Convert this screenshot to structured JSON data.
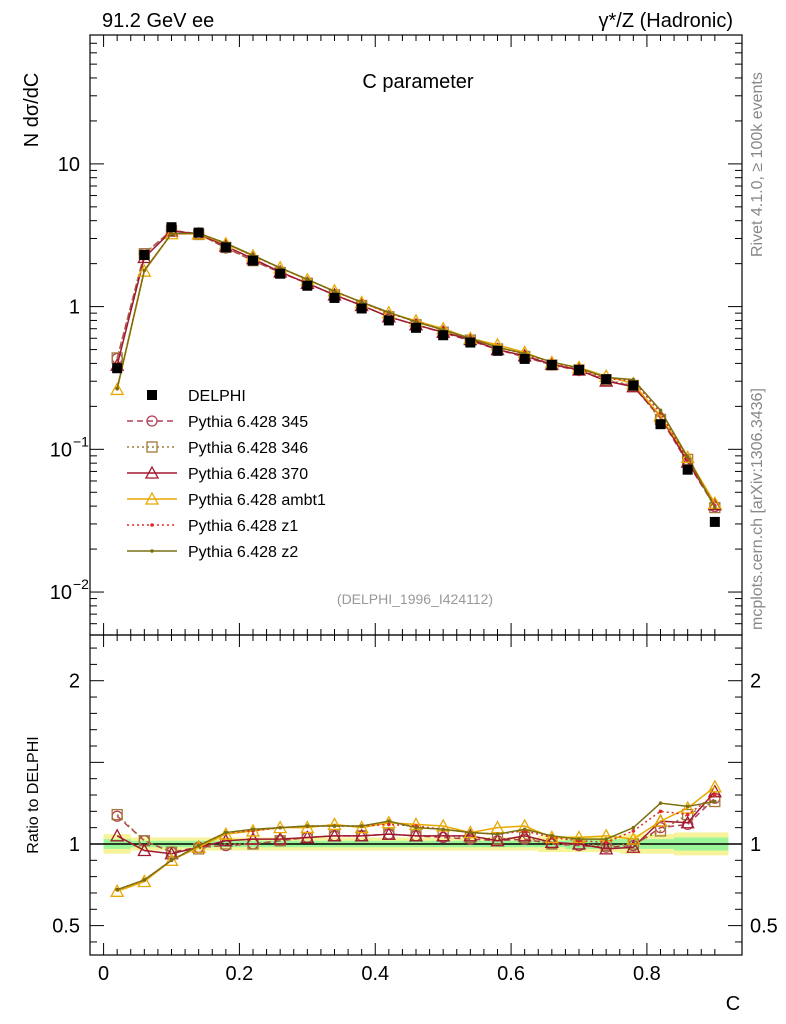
{
  "header": {
    "left": "91.2 GeV ee",
    "right_prefix": "γ*/Z (Hadronic)",
    "side_rivet": "Rivet 4.1.0, ≥ 100k events",
    "side_site": "mcplots.cern.ch [arXiv:1306.3436]"
  },
  "chart_data": {
    "type": "line",
    "title": "C parameter",
    "analysis_tag": "(DELPHI_1996_I424112)",
    "xlabel": "C",
    "ylabel_main": "N  dσ/dC",
    "ylabel_ratio": "Ratio to DELPHI",
    "xlim": [
      -0.02,
      0.94
    ],
    "ylim_main": [
      0.005,
      80
    ],
    "yscale_main": "log",
    "ylim_ratio": [
      0.32,
      2.28
    ],
    "x_ticks": [
      "0",
      "0.2",
      "0.4",
      "0.6",
      "0.8"
    ],
    "x_tick_values": [
      0,
      0.2,
      0.4,
      0.6,
      0.8
    ],
    "y_ticks_main": [
      {
        "value": 10,
        "base": "10",
        "exp": ""
      },
      {
        "value": 1,
        "base": "1",
        "exp": ""
      },
      {
        "value": 0.1,
        "base": "10",
        "exp": "−1"
      },
      {
        "value": 0.01,
        "base": "10",
        "exp": "−2"
      }
    ],
    "y_ticks_ratio": [
      {
        "value": 2,
        "label": "2"
      },
      {
        "value": 1,
        "label": "1"
      },
      {
        "value": 0.5,
        "label": "0.5"
      }
    ],
    "x": [
      0.02,
      0.06,
      0.1,
      0.14,
      0.18,
      0.22,
      0.26,
      0.3,
      0.34,
      0.38,
      0.42,
      0.46,
      0.5,
      0.54,
      0.58,
      0.62,
      0.66,
      0.7,
      0.74,
      0.78,
      0.82,
      0.86,
      0.9
    ],
    "data": {
      "name": "DELPHI",
      "values": [
        0.37,
        2.3,
        3.6,
        3.3,
        2.6,
        2.1,
        1.7,
        1.4,
        1.15,
        0.97,
        0.8,
        0.71,
        0.63,
        0.56,
        0.49,
        0.43,
        0.39,
        0.36,
        0.31,
        0.28,
        0.15,
        0.072,
        0.031
      ],
      "color": "#000000"
    },
    "series": [
      {
        "name": "Pythia 6.428 345",
        "color": "#b04058",
        "line": "dashed",
        "marker": "circle",
        "ratio": [
          1.17,
          1.02,
          0.95,
          0.98,
          0.99,
          1.0,
          1.02,
          1.04,
          1.05,
          1.05,
          1.06,
          1.05,
          1.04,
          1.03,
          1.02,
          1.03,
          1.0,
          0.99,
          0.98,
          0.99,
          1.1,
          1.12,
          1.28
        ]
      },
      {
        "name": "Pythia 6.428 346",
        "color": "#a07838",
        "line": "dotted",
        "marker": "square",
        "ratio": [
          1.18,
          1.02,
          0.95,
          0.97,
          1.0,
          1.0,
          1.02,
          1.04,
          1.05,
          1.05,
          1.06,
          1.05,
          1.05,
          1.04,
          1.03,
          1.04,
          1.0,
          1.0,
          0.99,
          1.0,
          1.08,
          1.18,
          1.26
        ]
      },
      {
        "name": "Pythia 6.428 370",
        "color": "#a01830",
        "line": "solid",
        "marker": "triangle",
        "ratio": [
          1.05,
          0.96,
          0.94,
          0.98,
          1.02,
          1.03,
          1.03,
          1.04,
          1.05,
          1.05,
          1.06,
          1.05,
          1.05,
          1.05,
          1.02,
          1.05,
          1.01,
          1.0,
          0.97,
          0.98,
          1.14,
          1.13,
          1.32
        ]
      },
      {
        "name": "Pythia 6.428 ambt1",
        "color": "#e8a800",
        "line": "solid",
        "marker": "triangle",
        "ratio": [
          0.71,
          0.77,
          0.9,
          0.98,
          1.06,
          1.08,
          1.1,
          1.1,
          1.12,
          1.1,
          1.13,
          1.12,
          1.11,
          1.07,
          1.1,
          1.11,
          1.04,
          1.04,
          1.05,
          1.03,
          1.14,
          1.22,
          1.35
        ]
      },
      {
        "name": "Pythia 6.428 z1",
        "color": "#e02828",
        "line": "dotted",
        "marker": "dot",
        "ratio": [
          0.72,
          0.78,
          0.9,
          0.99,
          1.07,
          1.08,
          1.1,
          1.11,
          1.11,
          1.11,
          1.12,
          1.11,
          1.09,
          1.07,
          1.06,
          1.08,
          1.04,
          1.02,
          1.01,
          1.08,
          1.2,
          1.18,
          1.3
        ]
      },
      {
        "name": "Pythia 6.428 z2",
        "color": "#7a7010",
        "line": "solid",
        "marker": "dot",
        "ratio": [
          0.72,
          0.78,
          0.9,
          0.99,
          1.07,
          1.09,
          1.1,
          1.11,
          1.11,
          1.11,
          1.14,
          1.1,
          1.09,
          1.07,
          1.06,
          1.09,
          1.05,
          1.03,
          1.03,
          1.1,
          1.25,
          1.23,
          1.26
        ]
      }
    ],
    "band_inner_halfwidth": [
      0.03,
      0.02,
      0.02,
      0.02,
      0.02,
      0.02,
      0.02,
      0.02,
      0.02,
      0.02,
      0.02,
      0.02,
      0.02,
      0.02,
      0.02,
      0.02,
      0.02,
      0.03,
      0.03,
      0.03,
      0.03,
      0.04,
      0.04
    ],
    "band_outer_halfwidth": [
      0.06,
      0.04,
      0.04,
      0.04,
      0.04,
      0.04,
      0.04,
      0.04,
      0.04,
      0.04,
      0.04,
      0.04,
      0.04,
      0.04,
      0.04,
      0.04,
      0.05,
      0.05,
      0.05,
      0.06,
      0.06,
      0.07,
      0.07
    ]
  }
}
